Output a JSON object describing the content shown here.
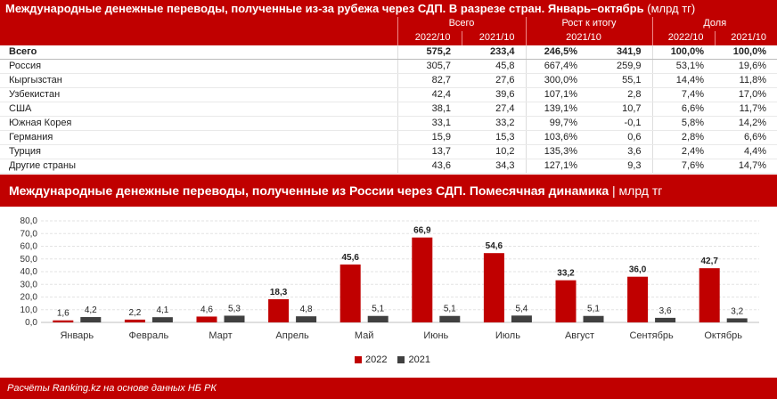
{
  "table": {
    "title": "Международные денежные переводы, полученные из-за рубежа через СДП. В разрезе стран. Январь–октябрь",
    "title_unit": "(млрд тг)",
    "group_headers": [
      "Всего",
      "Рост к итогу",
      "Доля"
    ],
    "sub_headers": [
      "2022/10",
      "2021/10",
      "2021/10",
      "2022/10",
      "2021/10"
    ],
    "rows": [
      {
        "name": "Всего",
        "v2022": "575,2",
        "v2021": "233,4",
        "growth_pct": "246,5%",
        "growth_abs": "341,9",
        "share2022": "100,0%",
        "share2021": "100,0%"
      },
      {
        "name": "Россия",
        "v2022": "305,7",
        "v2021": "45,8",
        "growth_pct": "667,4%",
        "growth_abs": "259,9",
        "share2022": "53,1%",
        "share2021": "19,6%"
      },
      {
        "name": "Кыргызстан",
        "v2022": "82,7",
        "v2021": "27,6",
        "growth_pct": "300,0%",
        "growth_abs": "55,1",
        "share2022": "14,4%",
        "share2021": "11,8%"
      },
      {
        "name": "Узбекистан",
        "v2022": "42,4",
        "v2021": "39,6",
        "growth_pct": "107,1%",
        "growth_abs": "2,8",
        "share2022": "7,4%",
        "share2021": "17,0%"
      },
      {
        "name": "США",
        "v2022": "38,1",
        "v2021": "27,4",
        "growth_pct": "139,1%",
        "growth_abs": "10,7",
        "share2022": "6,6%",
        "share2021": "11,7%"
      },
      {
        "name": "Южная Корея",
        "v2022": "33,1",
        "v2021": "33,2",
        "growth_pct": "99,7%",
        "growth_abs": "-0,1",
        "share2022": "5,8%",
        "share2021": "14,2%"
      },
      {
        "name": "Германия",
        "v2022": "15,9",
        "v2021": "15,3",
        "growth_pct": "103,6%",
        "growth_abs": "0,6",
        "share2022": "2,8%",
        "share2021": "6,6%"
      },
      {
        "name": "Турция",
        "v2022": "13,7",
        "v2021": "10,2",
        "growth_pct": "135,3%",
        "growth_abs": "3,6",
        "share2022": "2,4%",
        "share2021": "4,4%"
      },
      {
        "name": "Другие страны",
        "v2022": "43,6",
        "v2021": "34,3",
        "growth_pct": "127,1%",
        "growth_abs": "9,3",
        "share2022": "7,6%",
        "share2021": "14,7%"
      }
    ]
  },
  "chart_title": "Международные денежные переводы, полученные из России через СДП. Помесячная динамика",
  "chart_unit": "млрд тг",
  "footer": "Расчёты Ranking.kz на основе данных НБ РК",
  "colors": {
    "accent": "#c00000",
    "series2021": "#404040"
  },
  "chart_data": {
    "type": "bar",
    "title": "Международные денежные переводы, полученные из России через СДП. Помесячная динамика",
    "ylabel": "млрд тг",
    "categories": [
      "Январь",
      "Февраль",
      "Март",
      "Апрель",
      "Май",
      "Июнь",
      "Июль",
      "Август",
      "Сентябрь",
      "Октябрь"
    ],
    "series": [
      {
        "name": "2022",
        "values": [
          1.6,
          2.2,
          4.6,
          18.3,
          45.6,
          66.9,
          54.6,
          33.2,
          36.0,
          42.7
        ],
        "labels": [
          "1,6",
          "2,2",
          "4,6",
          "18,3",
          "45,6",
          "66,9",
          "54,6",
          "33,2",
          "36,0",
          "42,7"
        ]
      },
      {
        "name": "2021",
        "values": [
          4.2,
          4.1,
          5.3,
          4.8,
          5.1,
          5.1,
          5.4,
          5.1,
          3.6,
          3.2
        ],
        "labels": [
          "4,2",
          "4,1",
          "5,3",
          "4,8",
          "5,1",
          "5,1",
          "5,4",
          "5,1",
          "3,6",
          "3,2"
        ]
      }
    ],
    "ylim": [
      0,
      80
    ],
    "yticks": [
      "0,0",
      "10,0",
      "20,0",
      "30,0",
      "40,0",
      "50,0",
      "60,0",
      "70,0",
      "80,0"
    ],
    "grid": true,
    "legend": "bottom-center"
  }
}
